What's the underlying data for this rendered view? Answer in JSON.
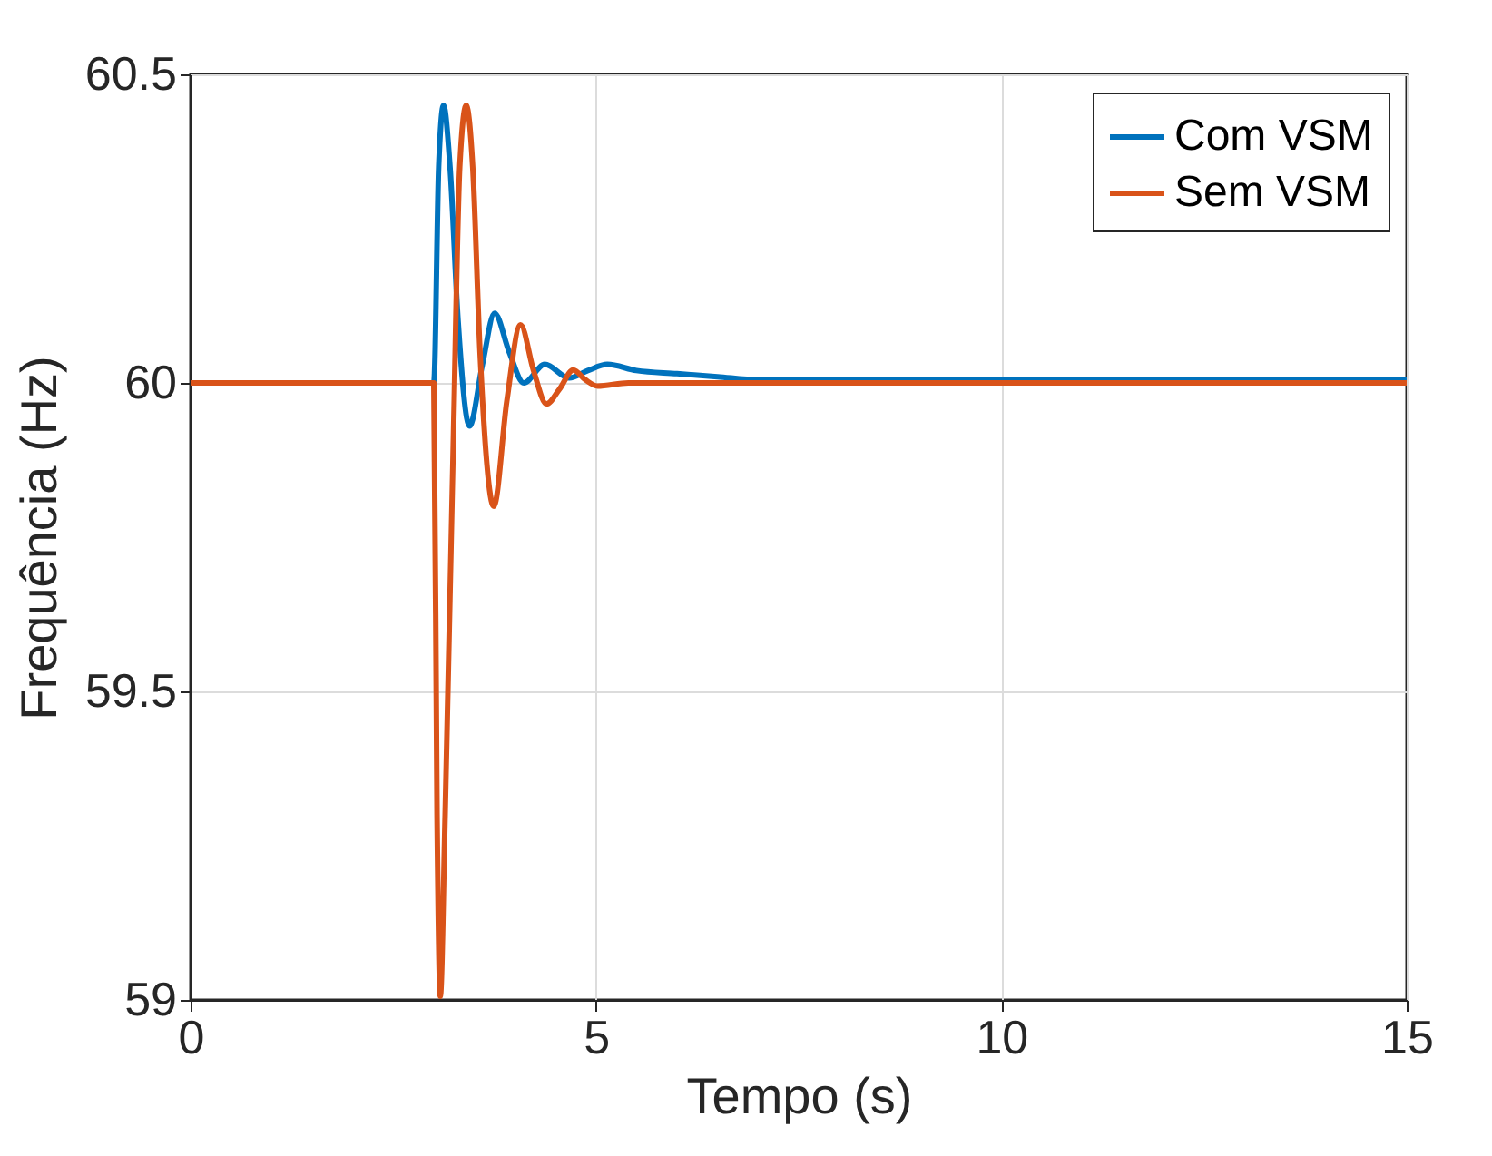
{
  "chart_data": {
    "type": "line",
    "xlabel": "Tempo (s)",
    "ylabel": "Frequência (Hz)",
    "xlim": [
      0,
      15
    ],
    "xticks": [
      0,
      5,
      10,
      15
    ],
    "ylim": [
      59,
      60.5
    ],
    "yticks": [
      59,
      59.5,
      60,
      60.5
    ],
    "grid": true,
    "legend": "top right",
    "line_style": "solid",
    "marker": "none",
    "series": [
      {
        "name": "Com VSM",
        "color": "#0072bd",
        "x": [
          0,
          2.99,
          3.0,
          3.06,
          3.12,
          3.2,
          3.3,
          3.44,
          3.6,
          3.75,
          3.93,
          4.11,
          4.37,
          4.67,
          4.9,
          5.14,
          5.5,
          6.0,
          6.5,
          7.0,
          8,
          10,
          12,
          15
        ],
        "values": [
          60.0,
          60.0,
          60.0,
          60.35,
          60.45,
          60.35,
          60.1,
          59.93,
          60.03,
          60.113,
          60.05,
          60.0,
          60.03,
          60.008,
          60.02,
          60.03,
          60.02,
          60.015,
          60.01,
          60.005,
          60.005,
          60.005,
          60.005,
          60.005
        ]
      },
      {
        "name": "Sem VSM",
        "color": "#d95319",
        "x": [
          0,
          2.99,
          3.0,
          3.04,
          3.08,
          3.14,
          3.24,
          3.32,
          3.4,
          3.48,
          3.57,
          3.74,
          3.9,
          4.07,
          4.23,
          4.39,
          4.55,
          4.72,
          4.87,
          5.02,
          5.4,
          6,
          8,
          10,
          15
        ],
        "values": [
          60.0,
          60.0,
          60.0,
          59.3,
          59.006,
          59.3,
          59.9,
          60.35,
          60.45,
          60.35,
          60.05,
          59.8,
          59.97,
          60.094,
          60.02,
          59.966,
          59.99,
          60.021,
          60.005,
          59.995,
          60.0,
          60.0,
          60.0,
          60.0,
          60.0
        ]
      }
    ]
  }
}
